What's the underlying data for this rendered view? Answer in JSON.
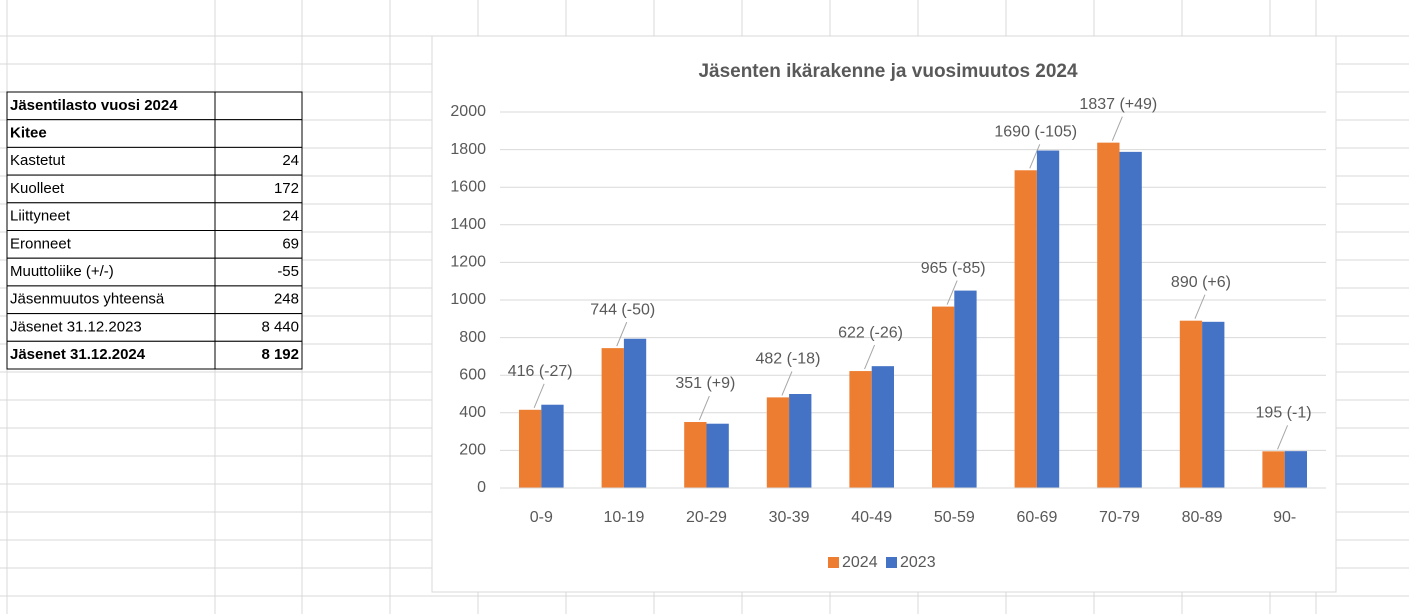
{
  "table": {
    "rows": [
      [
        "Jäsentilasto vuosi 2024",
        ""
      ],
      [
        "Kitee",
        ""
      ],
      [
        "Kastetut",
        "24"
      ],
      [
        "Kuolleet",
        "172"
      ],
      [
        "Liittyneet",
        "24"
      ],
      [
        "Eronneet",
        "69"
      ],
      [
        "Muuttoliike (+/-)",
        "-55"
      ],
      [
        "Jäsenmuutos yhteensä",
        "248"
      ],
      [
        "Jäsenet 31.12.2023",
        "8 440"
      ],
      [
        "Jäsenet 31.12.2024",
        "8 192"
      ]
    ]
  },
  "chart_data": {
    "type": "bar",
    "title": "Jäsenten ikärakenne ja vuosimuutos 2024",
    "categories": [
      "0-9",
      "10-19",
      "20-29",
      "30-39",
      "40-49",
      "50-59",
      "60-69",
      "70-79",
      "80-89",
      "90-"
    ],
    "series": [
      {
        "name": "2024",
        "color": "#ed7d31",
        "values": [
          416,
          744,
          351,
          482,
          622,
          965,
          1690,
          1837,
          890,
          195
        ],
        "value_labels": [
          "416 (-27)",
          "744 (-50)",
          "351 (+9)",
          "482 (-18)",
          "622 (-26)",
          "965 (-85)",
          "1690 (-105)",
          "1837 (+49)",
          "890 (+6)",
          "195 (-1)"
        ]
      },
      {
        "name": "2023",
        "color": "#4472c4",
        "values": [
          443,
          794,
          342,
          500,
          648,
          1050,
          1795,
          1788,
          884,
          196
        ]
      }
    ],
    "ylim": [
      0,
      2000
    ],
    "yticks": [
      0,
      200,
      400,
      600,
      800,
      1000,
      1200,
      1400,
      1600,
      1800,
      2000
    ],
    "grid": true,
    "legend": "bottom"
  }
}
